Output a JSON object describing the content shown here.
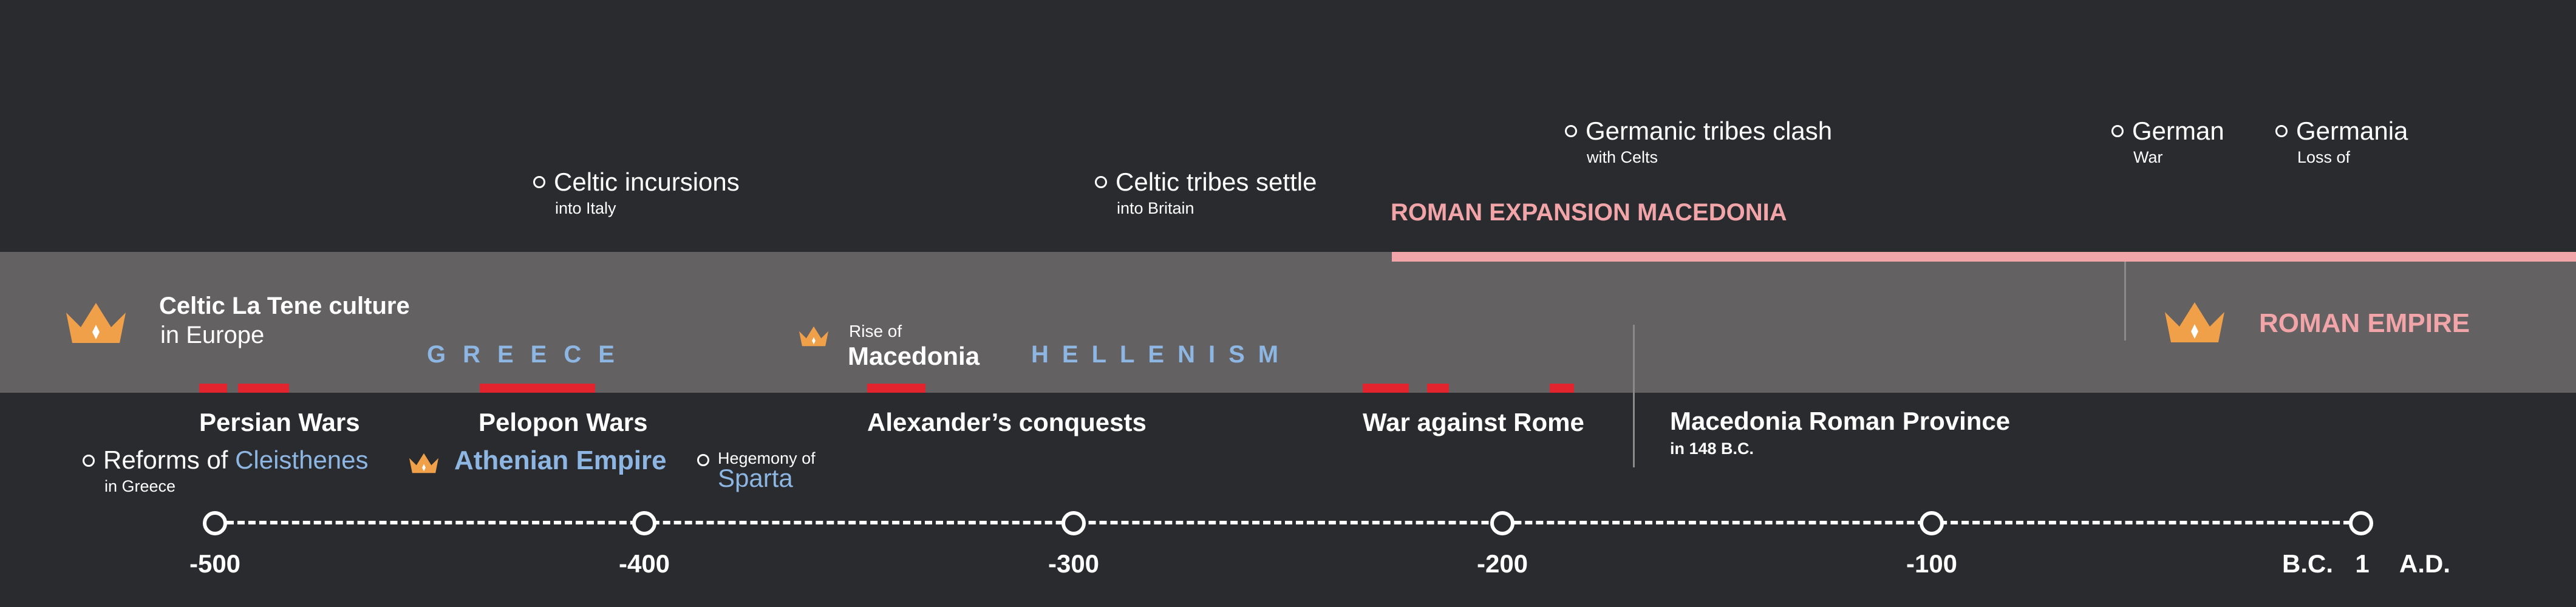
{
  "upper_events": [
    {
      "title": "Celtic incursions",
      "sub": "into Italy"
    },
    {
      "title": "Celtic tribes settle",
      "sub": "into Britain"
    },
    {
      "title": "Germanic tribes clash",
      "sub": "with Celts"
    },
    {
      "title": "German",
      "sub": "War"
    },
    {
      "title": "Germania",
      "sub": "Loss of"
    }
  ],
  "roman_expansion": "ROMAN EXPANSION MACEDONIA",
  "band": {
    "culture_title": "Celtic La Tene culture",
    "culture_sub": "in Europe",
    "greece": "GREECE",
    "rise_label": "Rise of",
    "macedonia": "Macedonia",
    "hellenism": "HELLENISM",
    "roman_empire": "ROMAN EMPIRE"
  },
  "wars": {
    "persian": "Persian Wars",
    "pelopon": "Pelopon Wars",
    "alexander": "Alexander’s conquests",
    "rome": "War against Rome"
  },
  "province": {
    "title": "Macedonia Roman Province",
    "sub": "in 148 B.C."
  },
  "reforms": {
    "prefix": "Reforms of ",
    "name": "Cleisthenes",
    "sub": "in Greece"
  },
  "athenian_empire": "Athenian Empire",
  "hegemony": {
    "label": "Hegemony of",
    "name": "Sparta"
  },
  "axis": {
    "ticks": [
      "-500",
      "-400",
      "-300",
      "-200",
      "-100",
      "1"
    ],
    "bc": "B.C.",
    "ad": "A.D."
  },
  "colors": {
    "accent_red": "#e2242e",
    "accent_pink": "#f2a5a9",
    "accent_blue": "#8db6e3",
    "crown_orange": "#f1a04a"
  }
}
